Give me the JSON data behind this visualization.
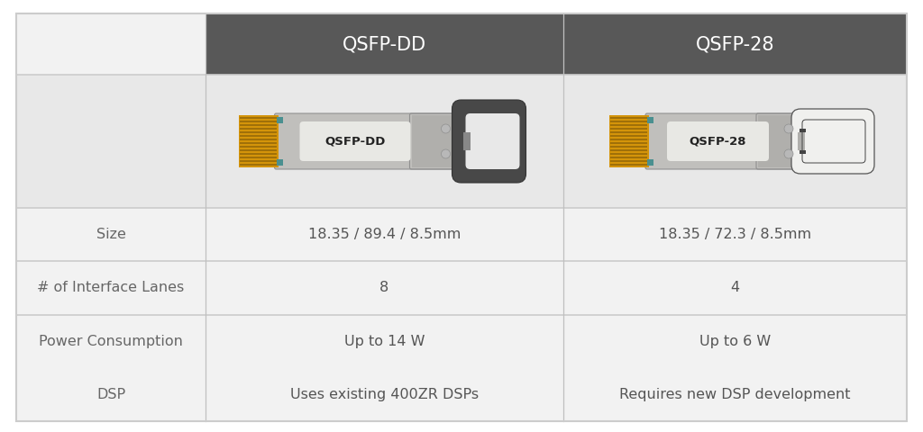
{
  "col1_header": "QSFP-DD",
  "col2_header": "QSFP-28",
  "rows": [
    {
      "label": "Size",
      "col1": "18.35 / 89.4 / 8.5mm",
      "col2": "18.35 / 72.3 / 8.5mm"
    },
    {
      "label": "# of Interface Lanes",
      "col1": "8",
      "col2": "4"
    },
    {
      "label": "Power Consumption",
      "col1": "Up to 14 W",
      "col2": "Up to 6 W"
    },
    {
      "label": "DSP",
      "col1": "Uses existing 400ZR DSPs",
      "col2": "Requires new DSP development"
    }
  ],
  "header_bg": "#585858",
  "header_text": "#ffffff",
  "row_bg": "#f2f2f2",
  "image_row_bg": "#e8e8e8",
  "label_col_bg": "#f2f2f2",
  "label_text_color": "#666666",
  "value_text_color": "#555555",
  "border_color": "#cccccc",
  "col_sep_color": "#c0c0c0",
  "background": "#ffffff",
  "outer_border": "#cccccc",
  "module_body": "#c0bfbc",
  "module_body_right": "#b0afac",
  "module_gold": "#d4940a",
  "module_gold_dark": "#a07008",
  "module_teal": "#4a9090",
  "module_label_bg": "#e8e8e4",
  "module_dark": "#484848",
  "module_white_conn": "#f0f0ee",
  "module_rivet": "#b8b8b8"
}
